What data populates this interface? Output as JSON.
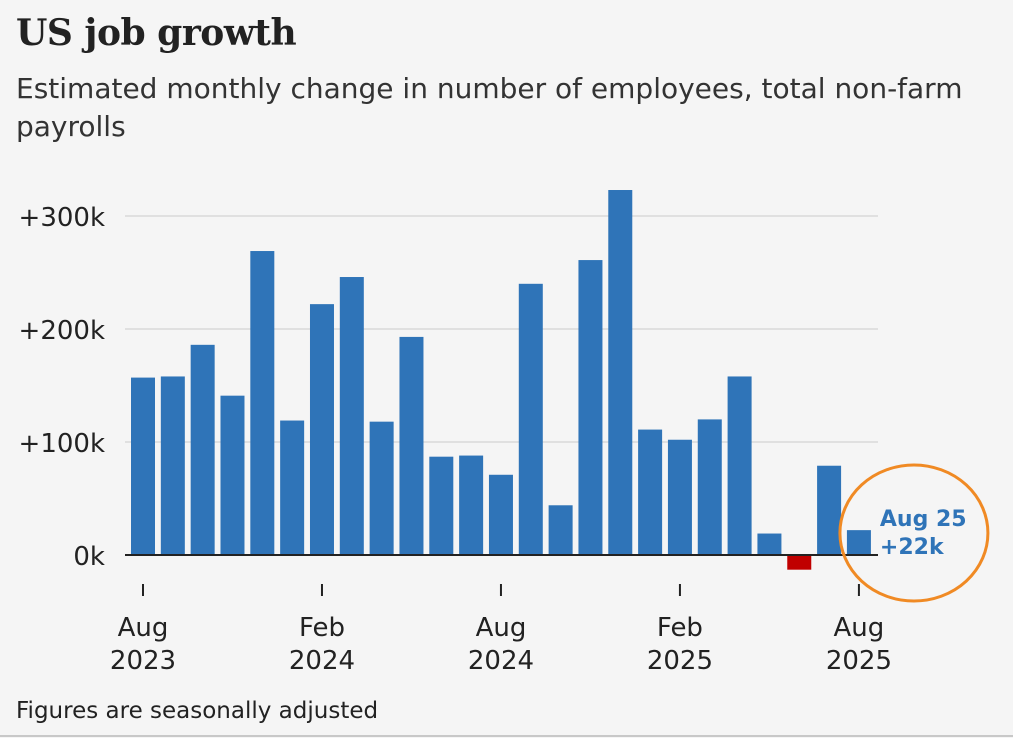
{
  "title": "US job growth",
  "subtitle": "Estimated monthly change in number of employees, total non-farm payrolls",
  "footnote": "Figures are seasonally adjusted",
  "chart_data": {
    "type": "bar",
    "title": "US job growth",
    "subtitle": "Estimated monthly change in number of employees, total non-farm payrolls",
    "xlabel": "",
    "ylabel": "",
    "ylim": [
      -15000,
      330000
    ],
    "yticks": [
      {
        "value": 0,
        "label": "0k"
      },
      {
        "value": 100000,
        "label": "+100k"
      },
      {
        "value": 200000,
        "label": "+200k"
      },
      {
        "value": 300000,
        "label": "+300k"
      }
    ],
    "categories": [
      "Aug 2023",
      "Sep 2023",
      "Oct 2023",
      "Nov 2023",
      "Dec 2023",
      "Jan 2024",
      "Feb 2024",
      "Mar 2024",
      "Apr 2024",
      "May 2024",
      "Jun 2024",
      "Jul 2024",
      "Aug 2024",
      "Sep 2024",
      "Oct 2024",
      "Nov 2024",
      "Dec 2024",
      "Jan 2025",
      "Feb 2025",
      "Mar 2025",
      "Apr 2025",
      "May 2025",
      "Jun 2025",
      "Jul 2025",
      "Aug 2025"
    ],
    "values": [
      157000,
      158000,
      186000,
      141000,
      269000,
      119000,
      222000,
      246000,
      118000,
      193000,
      87000,
      88000,
      71000,
      240000,
      44000,
      261000,
      323000,
      111000,
      102000,
      120000,
      158000,
      19000,
      -13000,
      79000,
      22000
    ],
    "xtick_labels": [
      {
        "index": 0,
        "line1": "Aug",
        "line2": "2023"
      },
      {
        "index": 6,
        "line1": "Feb",
        "line2": "2024"
      },
      {
        "index": 12,
        "line1": "Aug",
        "line2": "2024"
      },
      {
        "index": 18,
        "line1": "Feb",
        "line2": "2025"
      },
      {
        "index": 24,
        "line1": "Aug",
        "line2": "2025"
      }
    ],
    "colors": {
      "positive": "#2f74b8",
      "negative": "#c00000",
      "grid": "#d9d9d9",
      "axis": "#222222",
      "highlight": "#f08a24"
    },
    "annotation": {
      "index": 24,
      "line1": "Aug 25",
      "line2": "+22k",
      "color": "#2f74b8"
    },
    "highlight_circle": {
      "index": 24,
      "color": "#f08a24"
    }
  }
}
